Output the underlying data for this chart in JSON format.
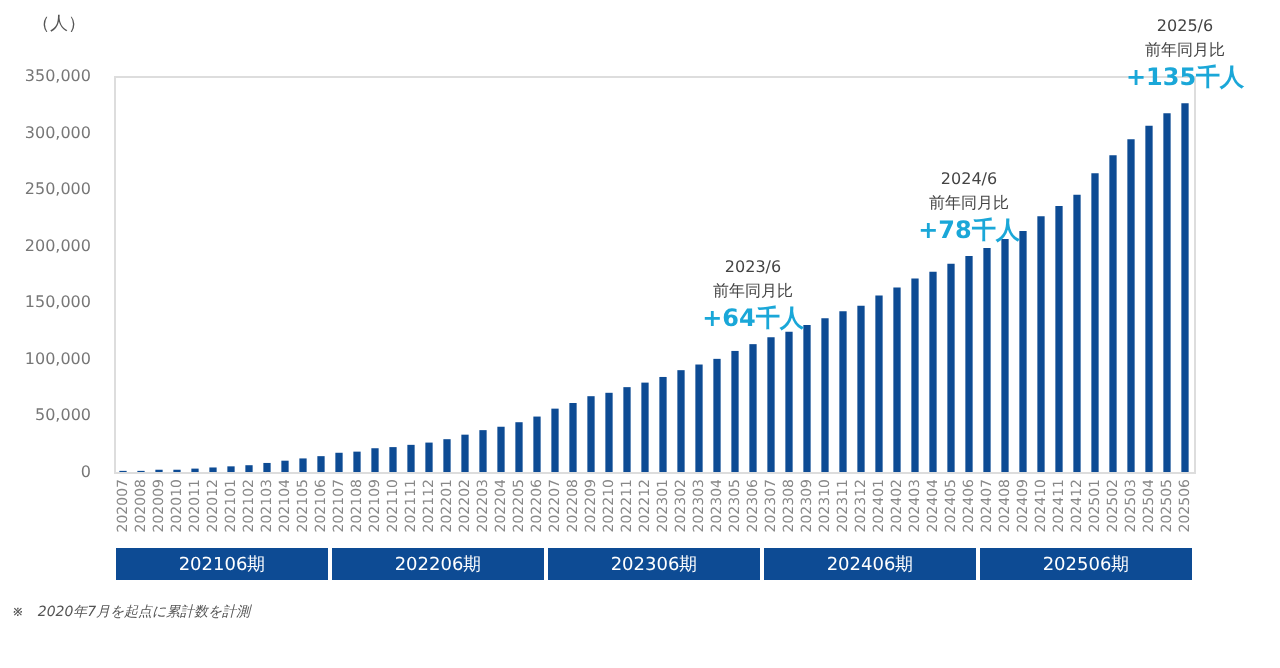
{
  "chart_data": {
    "type": "bar",
    "ylabel": "（人）",
    "categories": [
      "202007",
      "202008",
      "202009",
      "202010",
      "202011",
      "202012",
      "202101",
      "202102",
      "202103",
      "202104",
      "202105",
      "202106",
      "202107",
      "202108",
      "202109",
      "202110",
      "202111",
      "202112",
      "202201",
      "202202",
      "202203",
      "202204",
      "202205",
      "202206",
      "202207",
      "202208",
      "202209",
      "202210",
      "202211",
      "202212",
      "202301",
      "202302",
      "202303",
      "202304",
      "202305",
      "202306",
      "202307",
      "202308",
      "202309",
      "202310",
      "202311",
      "202312",
      "202401",
      "202402",
      "202403",
      "202404",
      "202405",
      "202406",
      "202407",
      "202408",
      "202409",
      "202410",
      "202411",
      "202412",
      "202501",
      "202502",
      "202503",
      "202504",
      "202505",
      "202506"
    ],
    "values": [
      1000,
      1000,
      2000,
      2000,
      3000,
      4000,
      5000,
      6000,
      8000,
      10000,
      12000,
      14000,
      17000,
      18000,
      21000,
      22000,
      24000,
      26000,
      29000,
      33000,
      37000,
      40000,
      44000,
      49000,
      56000,
      61000,
      67000,
      70000,
      75000,
      79000,
      84000,
      90000,
      95000,
      100000,
      107000,
      113000,
      119000,
      124000,
      130000,
      136000,
      142000,
      147000,
      156000,
      163000,
      171000,
      177000,
      184000,
      191000,
      198000,
      206000,
      213000,
      226000,
      235000,
      245000,
      264000,
      280000,
      294000,
      306000,
      317000,
      326000
    ],
    "color": "#0d4b94",
    "ylim": [
      0,
      350000
    ],
    "yticks": [
      0,
      {
        "value": 50000,
        "label": "50,000"
      },
      {
        "value": 100000,
        "label": "100,000"
      },
      {
        "value": 150000,
        "label": "150,000"
      },
      {
        "value": 200000,
        "label": "200,000"
      },
      {
        "value": 250000,
        "label": "250,000"
      },
      {
        "value": 300000,
        "label": "300,000"
      },
      {
        "value": 350000,
        "label": "350,000"
      }
    ],
    "grid": false,
    "annotations": [
      "2023/6",
      "前年同月比",
      {
        "text": "+64千人",
        "x": "202306",
        "y": 113000
      },
      "2024/6",
      "前年同月比",
      {
        "text": "+78千人",
        "x": "202406",
        "y": 191000
      },
      "2025/6",
      "前年同月比",
      {
        "text": "+135千人",
        "x": "202506",
        "y": 326000
      },
      "202106期",
      "202206期",
      "202306期",
      "202406期",
      "202506期",
      "※　2020年7月を起点に累計数を計測"
    ]
  }
}
